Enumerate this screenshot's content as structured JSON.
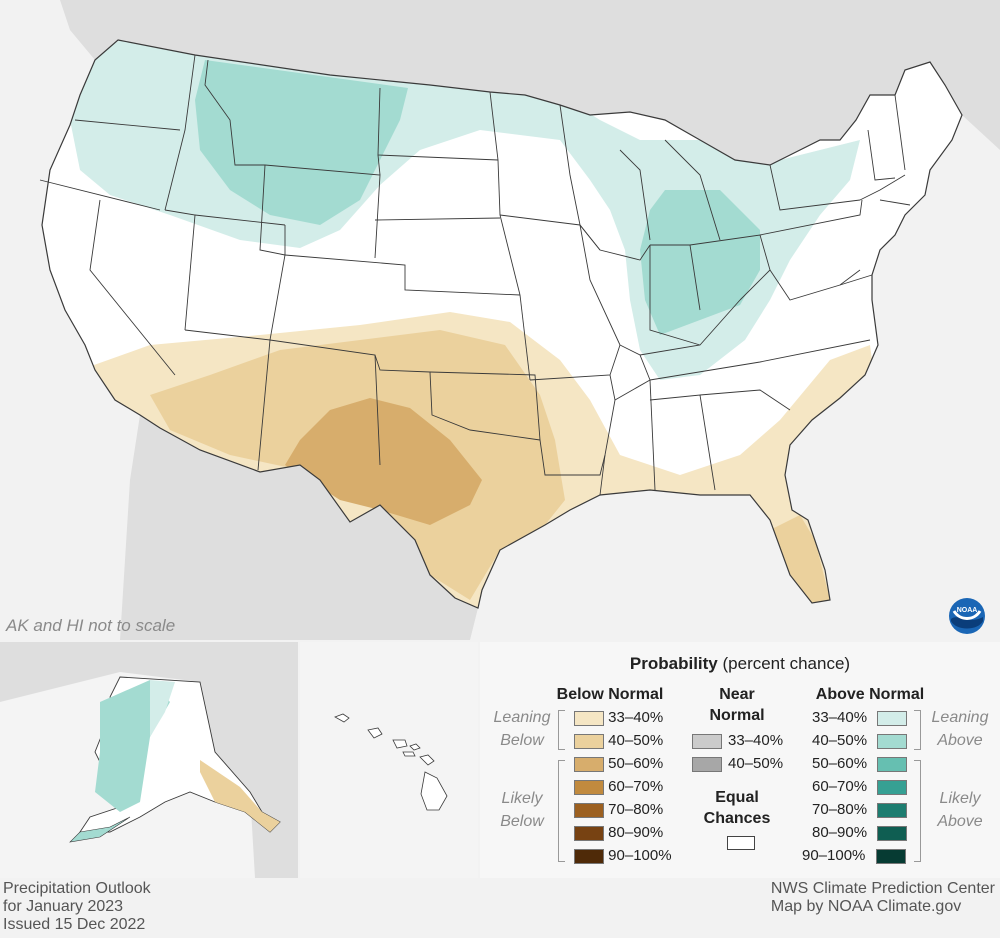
{
  "map_note": "AK and HI not to scale",
  "legend": {
    "title_bold": "Probability",
    "title_rest": "(percent chance)",
    "below_heading": "Below Normal",
    "near_heading": [
      "Near",
      "Normal"
    ],
    "above_heading": "Above Normal",
    "equal_heading": [
      "Equal",
      "Chances"
    ],
    "leaning_below": [
      "Leaning",
      "Below"
    ],
    "likely_below": [
      "Likely",
      "Below"
    ],
    "leaning_above": [
      "Leaning",
      "Above"
    ],
    "likely_above": [
      "Likely",
      "Above"
    ],
    "below_rows": [
      {
        "label": "33–40%",
        "color": "#f5e6c4"
      },
      {
        "label": "40–50%",
        "color": "#ebd19d"
      },
      {
        "label": "50–60%",
        "color": "#d7ad6c"
      },
      {
        "label": "60–70%",
        "color": "#c18a3e"
      },
      {
        "label": "70–80%",
        "color": "#9c6020"
      },
      {
        "label": "80–90%",
        "color": "#774212"
      },
      {
        "label": "90–100%",
        "color": "#4f2a08"
      }
    ],
    "near_rows": [
      {
        "label": "33–40%",
        "color": "#cbcbcb"
      },
      {
        "label": "40–50%",
        "color": "#a7a7a7"
      }
    ],
    "above_rows": [
      {
        "label": "33–40%",
        "color": "#d3ede9"
      },
      {
        "label": "40–50%",
        "color": "#a3dbd1"
      },
      {
        "label": "50–60%",
        "color": "#66bfb1"
      },
      {
        "label": "60–70%",
        "color": "#36a093"
      },
      {
        "label": "70–80%",
        "color": "#1d7d70"
      },
      {
        "label": "80–90%",
        "color": "#0f5e52"
      },
      {
        "label": "90–100%",
        "color": "#063b33"
      }
    ]
  },
  "footer_left": [
    "Precipitation Outlook",
    "for January 2023",
    "Issued 15 Dec 2022"
  ],
  "footer_right": [
    "NWS Climate Prediction Center",
    "Map by NOAA Climate.gov"
  ],
  "colors": {
    "background": "#f2f2f2",
    "land_outside": "#dedede",
    "us_land": "#ffffff",
    "border": "#3a3a3a"
  }
}
